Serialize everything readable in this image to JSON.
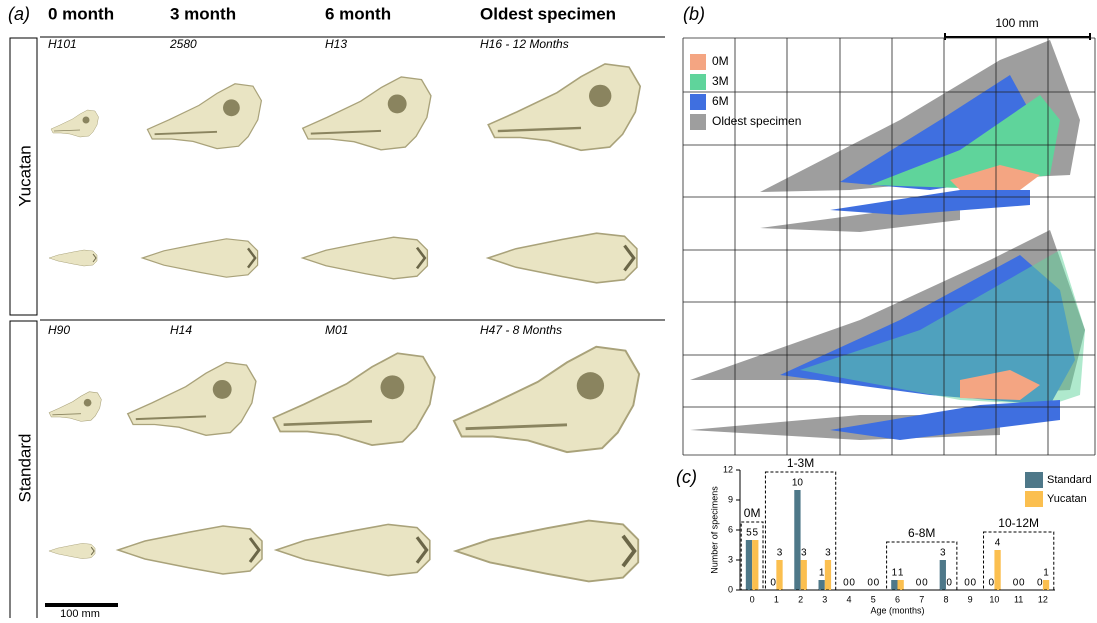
{
  "panel_a": {
    "label": "(a)",
    "columns": [
      "0 month",
      "3 month",
      "6 month",
      "Oldest specimen"
    ],
    "rows": [
      {
        "label": "Yucatan",
        "specimens": [
          "H101",
          "2580",
          "H13",
          "H16 - 12 Months"
        ]
      },
      {
        "label": "Standard",
        "specimens": [
          "H90",
          "H14",
          "M01",
          "H47 - 8 Months"
        ]
      }
    ],
    "scale_bar": "100 mm"
  },
  "panel_b": {
    "label": "(b)",
    "scale_bar": "100 mm",
    "legend": [
      {
        "name": "0M",
        "color": "#f4a582"
      },
      {
        "name": "3M",
        "color": "#5fd49b"
      },
      {
        "name": "6M",
        "color": "#3f6fe0"
      },
      {
        "name": "Oldest specimen",
        "color": "#9e9e9e"
      }
    ]
  },
  "panel_c": {
    "label": "(c)"
  },
  "chart_data": {
    "type": "bar",
    "categories": [
      0,
      1,
      2,
      3,
      4,
      5,
      6,
      7,
      8,
      9,
      10,
      11,
      12
    ],
    "series": [
      {
        "name": "Standard",
        "color": "#4e7889",
        "values": [
          5,
          0,
          10,
          1,
          0,
          0,
          1,
          0,
          3,
          0,
          0,
          0,
          0
        ]
      },
      {
        "name": "Yucatan",
        "color": "#fbbf4f",
        "values": [
          5,
          3,
          3,
          3,
          0,
          0,
          1,
          0,
          0,
          0,
          4,
          0,
          1
        ]
      }
    ],
    "ylim": [
      0,
      12
    ],
    "yticks": [
      0,
      3,
      6,
      9,
      12
    ],
    "ylabel": "Number of specimens",
    "xlabel": "Age (months)",
    "legend": "upper right",
    "annotations": [
      {
        "text": "0M",
        "from": 0,
        "to": 0
      },
      {
        "text": "1-3M",
        "from": 1,
        "to": 3
      },
      {
        "text": "6-8M",
        "from": 6,
        "to": 8
      },
      {
        "text": "10-12M",
        "from": 10,
        "to": 12
      }
    ]
  }
}
